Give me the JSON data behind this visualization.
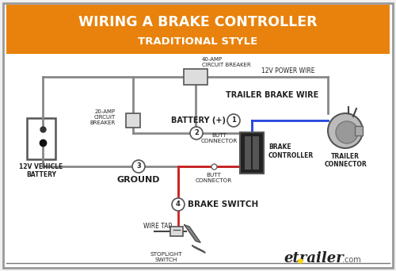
{
  "title_line1": "WIRING A BRAKE CONTROLLER",
  "title_line2": "TRADITIONAL STYLE",
  "title_bg_color": "#E8820C",
  "title_text_color": "#FFFFFF",
  "bg_color": "#F0F0F0",
  "diagram_bg": "#FFFFFF",
  "label_12v_power": "12V POWER WIRE",
  "label_trailer_brake": "TRAILER BRAKE WIRE",
  "label_butt1": "BUTT\nCONNECTOR",
  "label_trailer_connector": "TRAILER\nCONNECTOR",
  "label_brake_controller": "BRAKE\nCONTROLLER",
  "label_butt2": "BUTT\nCONNECTOR",
  "label_battery_pos": "BATTERY (+)",
  "label_ground": "GROUND",
  "label_brake_switch": "BRAKE SWITCH",
  "label_wire_tap": "WIRE TAP",
  "label_stoplight": "STOPLIGHT\nSWITCH",
  "label_20amp": "20-AMP\nCIRCUIT\nBREAKER",
  "label_40amp": "40-AMP\nCIRCUIT BREAKER",
  "label_12v_battery": "12V VEHICLE\nBATTERY",
  "etrailer_text": "etrailer",
  "etrailer_dot_com": ".com",
  "wire_gray": "#888888",
  "wire_blue": "#2244DD",
  "wire_red": "#CC2222",
  "wire_dark": "#444444",
  "circle_fill": "#FFFFFF",
  "circle_edge": "#555555",
  "box_fill": "#DDDDDD",
  "box_edge": "#555555"
}
